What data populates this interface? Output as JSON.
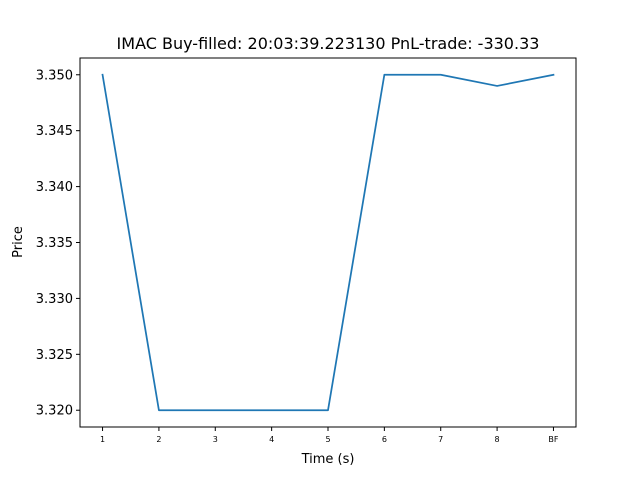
{
  "chart_data": {
    "type": "line",
    "title": "IMAC  Buy-filled:  20:03:39.223130  PnL-trade:  -330.33",
    "xlabel": "Time (s)",
    "ylabel": "Price",
    "categories": [
      "1",
      "2",
      "3",
      "4",
      "5",
      "6",
      "7",
      "8",
      "BF"
    ],
    "series": [
      {
        "values": [
          3.35,
          3.32,
          3.32,
          3.32,
          3.32,
          3.35,
          3.35,
          3.349,
          3.35
        ],
        "color": "#1f77b4"
      }
    ],
    "yticks": [
      "3.320",
      "3.325",
      "3.330",
      "3.335",
      "3.340",
      "3.345",
      "3.350"
    ],
    "ylim": [
      3.3185,
      3.3515
    ],
    "grid": false,
    "legend": "none"
  }
}
